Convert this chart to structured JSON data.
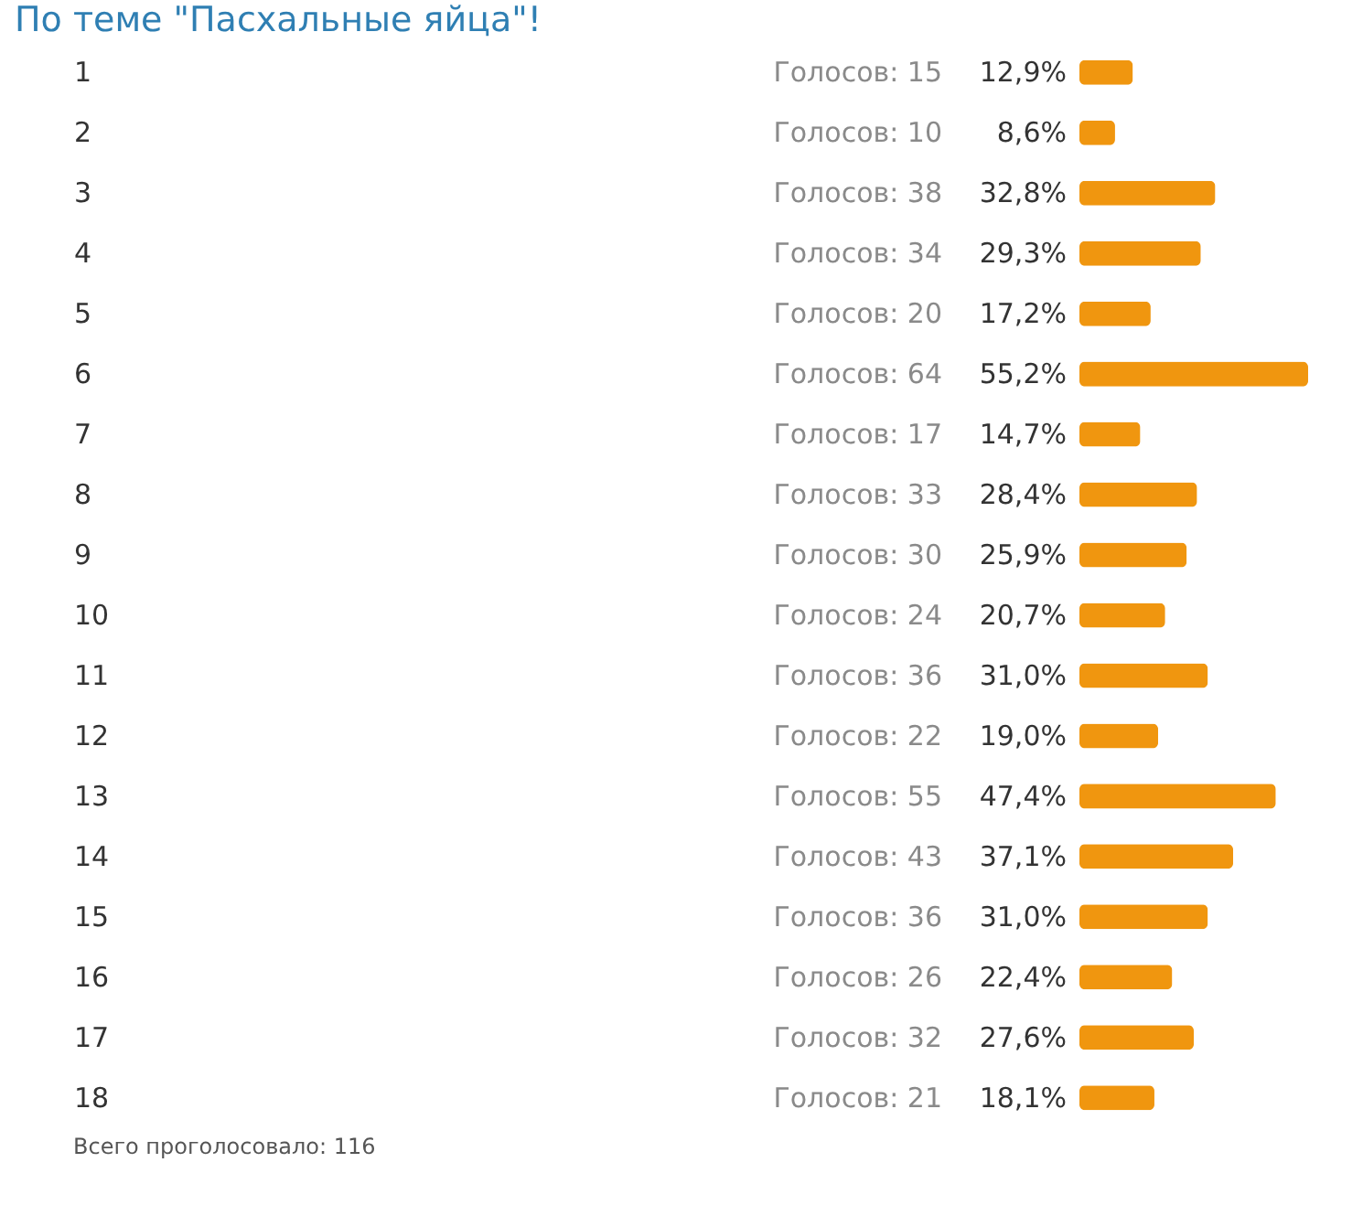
{
  "chart_data": {
    "type": "bar",
    "orientation": "horizontal",
    "title": "По теме \"Пасхальные яйца\"!",
    "categories": [
      "1",
      "2",
      "3",
      "4",
      "5",
      "6",
      "7",
      "8",
      "9",
      "10",
      "11",
      "12",
      "13",
      "14",
      "15",
      "16",
      "17",
      "18"
    ],
    "values": [
      12.9,
      8.6,
      32.8,
      29.3,
      17.2,
      55.2,
      14.7,
      28.4,
      25.9,
      20.7,
      31.0,
      19.0,
      47.4,
      37.1,
      31.0,
      22.4,
      27.6,
      18.1
    ],
    "value_labels": [
      "12,9%",
      "8,6%",
      "32,8%",
      "29,3%",
      "17,2%",
      "55,2%",
      "14,7%",
      "28,4%",
      "25,9%",
      "20,7%",
      "31,0%",
      "19,0%",
      "47,4%",
      "37,1%",
      "31,0%",
      "22,4%",
      "27,6%",
      "18,1%"
    ],
    "color": "#f0960f",
    "annotations": [
      "Голосов: 15",
      "Голосов: 10",
      "Голосов: 38",
      "Голосов: 34",
      "Голосов: 20",
      "Голосов: 64",
      "Голосов: 17",
      "Голосов: 33",
      "Голосов: 30",
      "Голосов: 24",
      "Голосов: 36",
      "Голосов: 22",
      "Голосов: 55",
      "Голосов: 43",
      "Голосов: 36",
      "Голосов: 26",
      "Голосов: 32",
      "Голосов: 21",
      "Всего проголосовало: 116"
    ]
  }
}
